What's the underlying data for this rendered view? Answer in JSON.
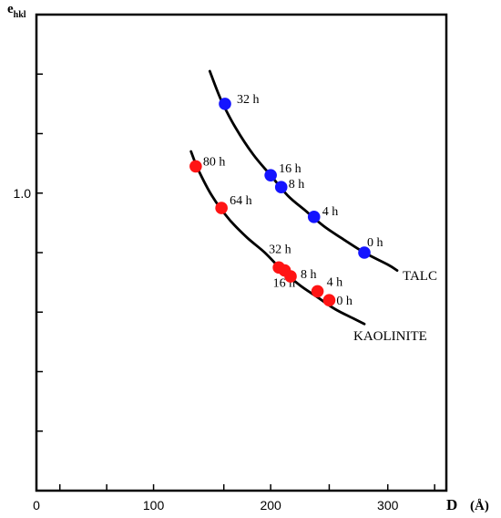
{
  "chart_data": {
    "type": "scatter",
    "title": "",
    "xlabel": "D",
    "xunit": "(Å)",
    "ylabel": "e",
    "ylabel_sub": "hkl",
    "xlim": [
      0,
      350
    ],
    "ylim": [
      0.0,
      1.6
    ],
    "x_ticks": [
      {
        "value": 0,
        "label": "0"
      },
      {
        "value": 100,
        "label": "100"
      },
      {
        "value": 200,
        "label": "200"
      },
      {
        "value": 300,
        "label": "300"
      }
    ],
    "x_minor_ticks": [
      20,
      60,
      160,
      250,
      340
    ],
    "y_ticks": [
      {
        "value": 1.0,
        "label": "1.0"
      }
    ],
    "y_minor_ticks": [
      0.2,
      0.4,
      0.6,
      0.8,
      1.2,
      1.4
    ],
    "grid": false,
    "series": [
      {
        "name": "TALC",
        "color": "#1414ff",
        "curve": [
          [
            148,
            1.41
          ],
          [
            158,
            1.31
          ],
          [
            170,
            1.22
          ],
          [
            185,
            1.13
          ],
          [
            200,
            1.06
          ],
          [
            215,
            0.99
          ],
          [
            230,
            0.94
          ],
          [
            245,
            0.89
          ],
          [
            260,
            0.85
          ],
          [
            280,
            0.8
          ],
          [
            300,
            0.76
          ],
          [
            308,
            0.74
          ]
        ],
        "points": [
          {
            "x": 161,
            "y": 1.3,
            "label": "32 h"
          },
          {
            "x": 200,
            "y": 1.06,
            "label": "16 h"
          },
          {
            "x": 209,
            "y": 1.02,
            "label": "8 h"
          },
          {
            "x": 237,
            "y": 0.92,
            "label": "4 h"
          },
          {
            "x": 280,
            "y": 0.8,
            "label": "0 h"
          }
        ]
      },
      {
        "name": "KAOLINITE",
        "color": "#ff1414",
        "curve": [
          [
            132,
            1.14
          ],
          [
            138,
            1.08
          ],
          [
            150,
            0.99
          ],
          [
            165,
            0.91
          ],
          [
            180,
            0.85
          ],
          [
            195,
            0.8
          ],
          [
            210,
            0.74
          ],
          [
            225,
            0.69
          ],
          [
            240,
            0.65
          ],
          [
            255,
            0.61
          ],
          [
            270,
            0.58
          ],
          [
            280,
            0.56
          ]
        ],
        "points": [
          {
            "x": 136,
            "y": 1.09,
            "label": "80 h"
          },
          {
            "x": 158,
            "y": 0.95,
            "label": "64 h"
          },
          {
            "x": 207,
            "y": 0.75,
            "label": "32 h"
          },
          {
            "x": 212,
            "y": 0.74,
            "label": "16 h"
          },
          {
            "x": 217,
            "y": 0.72,
            "label": "8 h"
          },
          {
            "x": 240,
            "y": 0.67,
            "label": "4 h"
          },
          {
            "x": 250,
            "y": 0.64,
            "label": "0 h"
          }
        ]
      }
    ]
  }
}
